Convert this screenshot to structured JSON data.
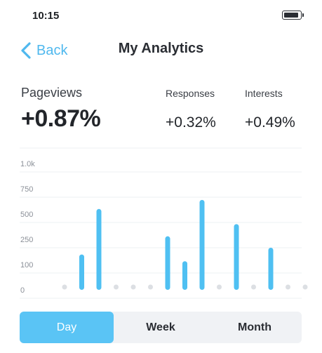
{
  "status": {
    "time": "10:15",
    "battery_level": 0.92
  },
  "nav": {
    "back_label": "Back",
    "title": "My Analytics"
  },
  "metrics": {
    "pageviews": {
      "label": "Pageviews",
      "value": "+0.87%"
    },
    "responses": {
      "label": "Responses",
      "value": "+0.32%"
    },
    "interests": {
      "label": "Interests",
      "value": "+0.49%"
    }
  },
  "colors": {
    "accent": "#4fb8ee",
    "bar": "#4fc0f2",
    "dot": "#dcdfe3",
    "grid": "#edf0f3"
  },
  "chart_data": {
    "type": "bar",
    "ylim": [
      0,
      1000
    ],
    "y_ticks": [
      0,
      100,
      250,
      500,
      750,
      1000
    ],
    "y_tick_labels": [
      "0",
      "100",
      "250",
      "500",
      "750",
      "1.0k"
    ],
    "values": [
      0,
      160,
      550,
      0,
      0,
      0,
      280,
      120,
      640,
      0,
      400,
      0,
      200,
      0,
      0
    ],
    "grid": true
  },
  "tabs": [
    {
      "label": "Day",
      "active": true
    },
    {
      "label": "Week",
      "active": false
    },
    {
      "label": "Month",
      "active": false
    }
  ]
}
